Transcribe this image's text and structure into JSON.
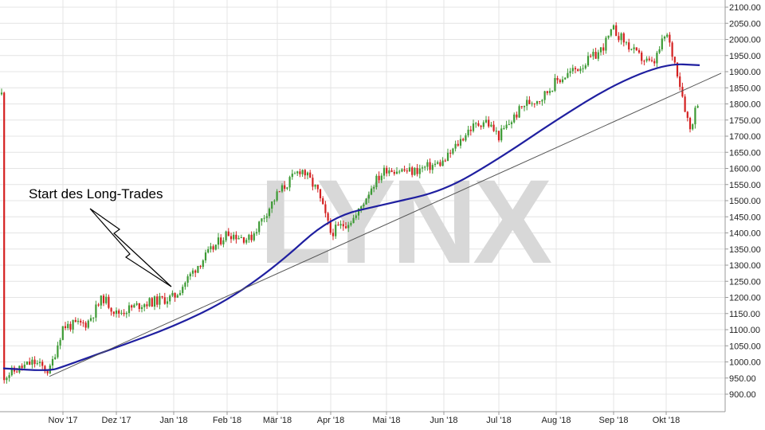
{
  "watermark": "LYNX",
  "annotation": "Start des Long-Trades",
  "colors": {
    "up": "#3c9a34",
    "down": "#d42020",
    "ma": "#1f1fa0",
    "trendline": "#555555",
    "grid": "#e4e4e4",
    "watermark": "#d8d8d8"
  },
  "chart_data": {
    "type": "candlestick",
    "title": "",
    "xlabel": "",
    "ylabel": "",
    "ylim": [
      850,
      2100
    ],
    "grid": true,
    "y_ticks": [
      "900.00",
      "950.00",
      "1000.00",
      "1050.00",
      "1100.00",
      "1150.00",
      "1200.00",
      "1250.00",
      "1300.00",
      "1350.00",
      "1400.00",
      "1450.00",
      "1500.00",
      "1550.00",
      "1600.00",
      "1650.00",
      "1700.00",
      "1750.00",
      "1800.00",
      "1850.00",
      "1900.00",
      "1950.00",
      "2000.00",
      "2050.00",
      "2100.00"
    ],
    "x_ticks": [
      "Nov '17",
      "Dez '17",
      "Jan '18",
      "Feb '18",
      "Mär '18",
      "Apr '18",
      "Mai '18",
      "Jun '18",
      "Jul '18",
      "Aug '18",
      "Sep '18",
      "Okt '18"
    ],
    "price_anchors": [
      {
        "x": "Okt '17 start",
        "close": 955
      },
      {
        "x": "mid Okt '17",
        "close": 1000
      },
      {
        "x": "late Okt '17",
        "close": 970
      },
      {
        "x": "Nov '17",
        "close": 1110
      },
      {
        "x": "mid Nov '17",
        "close": 1120
      },
      {
        "x": "late Nov '17",
        "close": 1200
      },
      {
        "x": "Dez '17",
        "close": 1150
      },
      {
        "x": "mid Dez '17",
        "close": 1180
      },
      {
        "x": "Jan '18",
        "close": 1200
      },
      {
        "x": "mid Jan '18",
        "close": 1300
      },
      {
        "x": "Feb '18",
        "close": 1400
      },
      {
        "x": "mid Feb '18",
        "close": 1380
      },
      {
        "x": "Mär '18",
        "close": 1520
      },
      {
        "x": "mid Mär '18",
        "close": 1600
      },
      {
        "x": "late Mär '18",
        "close": 1530
      },
      {
        "x": "Apr '18",
        "close": 1400
      },
      {
        "x": "mid Apr '18",
        "close": 1450
      },
      {
        "x": "late Apr '18",
        "close": 1550
      },
      {
        "x": "Mai '18",
        "close": 1600
      },
      {
        "x": "mid Mai '18",
        "close": 1590
      },
      {
        "x": "Jun '18",
        "close": 1620
      },
      {
        "x": "mid Jun '18",
        "close": 1720
      },
      {
        "x": "late Jun '18",
        "close": 1750
      },
      {
        "x": "Jul '18",
        "close": 1700
      },
      {
        "x": "mid Jul '18",
        "close": 1800
      },
      {
        "x": "late Jul '18",
        "close": 1820
      },
      {
        "x": "Aug '18",
        "close": 1870
      },
      {
        "x": "mid Aug '18",
        "close": 1920
      },
      {
        "x": "late Aug '18",
        "close": 1960
      },
      {
        "x": "Sep '18",
        "close": 2030
      },
      {
        "x": "mid Sep '18",
        "close": 1950
      },
      {
        "x": "late Sep '18",
        "close": 1920
      },
      {
        "x": "Okt '18",
        "close": 2020
      },
      {
        "x": "early Okt '18",
        "close": 1900
      },
      {
        "x": "mid Okt '18",
        "close": 1720
      },
      {
        "x": "late Okt '18",
        "close": 1830
      }
    ],
    "series": [
      {
        "type": "moving-average",
        "points": [
          {
            "x": "Okt '17 start",
            "y": 980
          },
          {
            "x": "late Okt '17",
            "y": 972
          },
          {
            "x": "Nov '17",
            "y": 985
          },
          {
            "x": "Dez '17",
            "y": 1045
          },
          {
            "x": "Jan '18",
            "y": 1110
          },
          {
            "x": "Feb '18",
            "y": 1190
          },
          {
            "x": "Mär '18",
            "y": 1300
          },
          {
            "x": "Apr '18",
            "y": 1450
          },
          {
            "x": "Mai '18",
            "y": 1490
          },
          {
            "x": "Jun '18",
            "y": 1530
          },
          {
            "x": "Jul '18",
            "y": 1630
          },
          {
            "x": "Aug '18",
            "y": 1750
          },
          {
            "x": "Sep '18",
            "y": 1860
          },
          {
            "x": "Okt '18",
            "y": 1925
          },
          {
            "x": "late Okt '18",
            "y": 1920
          }
        ]
      },
      {
        "type": "trendline",
        "points": [
          {
            "x": "late Okt '17",
            "y": 955
          },
          {
            "x": "late Okt '18",
            "y": 1865
          }
        ]
      }
    ]
  }
}
